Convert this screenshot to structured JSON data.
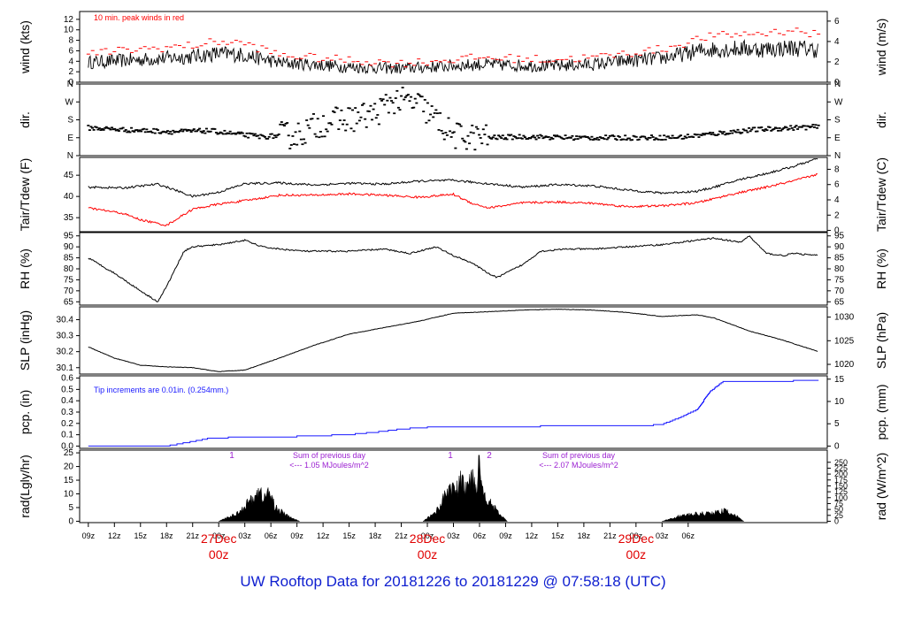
{
  "footer": {
    "prefix": "UW Rooftop Data for",
    "start": "20181226",
    "to": "to",
    "end": "20181229",
    "at": "@",
    "time": "07:58:18",
    "tz": "(UTC)"
  },
  "colors": {
    "data": "#000000",
    "peak": "#ff0000",
    "dewpoint": "#ff0000",
    "precip": "#1a1aff",
    "note": "#9b1fd1",
    "date_label": "#e00000",
    "footer": "#1020d0"
  },
  "chart_data": [
    {
      "id": "wind",
      "type": "line",
      "ylabel": "wind (kts)",
      "ylabel_right": "wind (m/s)",
      "yticks": [
        "0",
        "2",
        "4",
        "6",
        "8",
        "10",
        "12"
      ],
      "yticks_right": [
        "0",
        "2",
        "4",
        "6"
      ],
      "ylim": [
        0,
        13.5
      ],
      "annotation": "10 min. peak winds in red",
      "series": [
        {
          "x": [
            0,
            6,
            12,
            15,
            18,
            22,
            25,
            30,
            36,
            45,
            50,
            53,
            58,
            62,
            66,
            71,
            75,
            78,
            81,
            84
          ],
          "y": [
            3.8,
            4.3,
            4.9,
            5.5,
            5.2,
            3.7,
            3.5,
            2.9,
            2.6,
            3.4,
            3.2,
            3.1,
            3.4,
            4.1,
            4.6,
            6.2,
            6.4,
            6.3,
            6.6,
            6.2
          ]
        },
        {
          "x": [
            0,
            6,
            12,
            15,
            18,
            22,
            25,
            30,
            36,
            45,
            50,
            53,
            58,
            62,
            66,
            71,
            75,
            78,
            81,
            84
          ],
          "y": [
            5.5,
            6.3,
            7.0,
            7.8,
            7.4,
            5.2,
            4.8,
            4.2,
            3.6,
            4.7,
            4.5,
            4.3,
            4.7,
            5.5,
            6.3,
            8.6,
            9.2,
            9.4,
            10.0,
            9.0
          ]
        }
      ]
    },
    {
      "id": "dir",
      "type": "scatter",
      "ylabel": "dir.",
      "ylabel_right": "dir.",
      "yticks": [
        "N",
        "E",
        "S",
        "W",
        "N"
      ],
      "yticks_right": [
        "N",
        "E",
        "S",
        "W",
        "N"
      ],
      "ylim": [
        0,
        360
      ],
      "series": [
        {
          "x": [
            0,
            5,
            10,
            14,
            17,
            20,
            24,
            27,
            30,
            33,
            35,
            38,
            42,
            46,
            50,
            56,
            62,
            68,
            72,
            76,
            80,
            84
          ],
          "y": [
            140,
            128,
            120,
            125,
            108,
            95,
            105,
            165,
            185,
            210,
            280,
            260,
            100,
            90,
            95,
            90,
            90,
            92,
            110,
            128,
            138,
            145
          ]
        }
      ]
    },
    {
      "id": "temp",
      "type": "line",
      "ylabel": "Tair/Tdew (F)",
      "ylabel_right": "Tair/Tdew (C)",
      "yticks": [
        "35",
        "40",
        "45"
      ],
      "yticks_right": [
        "0",
        "2",
        "4",
        "6",
        "8"
      ],
      "ylim": [
        31.7,
        49.2
      ],
      "series": [
        {
          "x": [
            0,
            4,
            8,
            10,
            12,
            15,
            18,
            22,
            26,
            30,
            34,
            38,
            42,
            46,
            50,
            54,
            58,
            62,
            66,
            70,
            72,
            75,
            78,
            81,
            84
          ],
          "y": [
            42.2,
            42.0,
            42.9,
            41.5,
            40.0,
            41.0,
            43.0,
            43.2,
            42.7,
            43.1,
            42.9,
            43.6,
            43.8,
            43.0,
            42.2,
            42.8,
            42.5,
            41.5,
            40.8,
            41.2,
            42.2,
            44.0,
            45.4,
            47.0,
            49.0
          ]
        },
        {
          "x": [
            0,
            4,
            6,
            9,
            12,
            15,
            18,
            22,
            26,
            30,
            34,
            38,
            42,
            44,
            46,
            50,
            54,
            58,
            62,
            66,
            70,
            74,
            78,
            81,
            84
          ],
          "y": [
            37.3,
            36.0,
            34.5,
            33.2,
            37.0,
            38.2,
            39.0,
            40.3,
            40.3,
            40.6,
            40.3,
            39.8,
            40.5,
            38.5,
            37.3,
            38.5,
            38.7,
            38.4,
            37.6,
            37.8,
            38.5,
            40.5,
            42.2,
            43.6,
            45.3
          ]
        }
      ]
    },
    {
      "id": "rh",
      "type": "line",
      "ylabel": "RH (%)",
      "ylabel_right": "RH (%)",
      "yticks": [
        "65",
        "70",
        "75",
        "80",
        "85",
        "90",
        "95"
      ],
      "yticks_right": [
        "65",
        "70",
        "75",
        "80",
        "85",
        "90",
        "95"
      ],
      "ylim": [
        63.5,
        96.5
      ],
      "series": [
        {
          "x": [
            0,
            3,
            6,
            8,
            9,
            11,
            12,
            15,
            18,
            20,
            22,
            25,
            30,
            34,
            37,
            40,
            42,
            44,
            46,
            47,
            50,
            52,
            55,
            58,
            62,
            66,
            70,
            72,
            75,
            76,
            78,
            80,
            81,
            84
          ],
          "y": [
            85,
            78,
            70,
            65,
            72,
            88,
            90,
            91,
            93,
            90,
            89,
            88,
            88,
            89,
            87,
            90,
            86,
            83,
            78,
            76,
            82,
            88,
            89,
            89,
            90,
            91,
            93,
            94,
            92,
            95,
            87,
            86,
            87,
            86
          ]
        }
      ]
    },
    {
      "id": "slp",
      "type": "line",
      "ylabel": "SLP (inHg)",
      "ylabel_right": "SLP (hPa)",
      "yticks": [
        "30.1",
        "30.2",
        "30.3",
        "30.4"
      ],
      "yticks_right": [
        "1020",
        "1025",
        "1030"
      ],
      "ylim": [
        30.06,
        30.48
      ],
      "series": [
        {
          "x": [
            0,
            3,
            6,
            9,
            12,
            15,
            18,
            22,
            26,
            30,
            34,
            38,
            42,
            46,
            50,
            54,
            58,
            62,
            66,
            70,
            72,
            76,
            80,
            84
          ],
          "y": [
            30.23,
            30.16,
            30.115,
            30.105,
            30.1,
            30.075,
            30.085,
            30.16,
            30.24,
            30.31,
            30.35,
            30.39,
            30.44,
            30.45,
            30.46,
            30.465,
            30.46,
            30.445,
            30.42,
            30.43,
            30.41,
            30.33,
            30.27,
            30.2
          ]
        }
      ]
    },
    {
      "id": "pcp",
      "type": "line",
      "ylabel": "pcp. (in)",
      "ylabel_right": "pcp. (mm)",
      "yticks": [
        "0.0",
        "0.1",
        "0.2",
        "0.3",
        "0.4",
        "0.5",
        "0.6"
      ],
      "yticks_right": [
        "0",
        "5",
        "10",
        "15"
      ],
      "ylim": [
        -0.02,
        0.62
      ],
      "annotation": "Tip increments are 0.01in. (0.254mm.)",
      "series": [
        {
          "x": [
            0,
            9,
            12,
            14,
            18,
            22,
            26,
            30,
            34,
            36,
            38,
            40,
            48,
            56,
            64,
            66,
            68,
            70,
            71.5,
            73,
            76,
            80,
            82,
            84
          ],
          "y": [
            0,
            0,
            0.04,
            0.07,
            0.08,
            0.08,
            0.09,
            0.1,
            0.13,
            0.15,
            0.16,
            0.17,
            0.17,
            0.18,
            0.18,
            0.19,
            0.25,
            0.32,
            0.48,
            0.57,
            0.57,
            0.57,
            0.58,
            0.58
          ]
        }
      ]
    },
    {
      "id": "rad",
      "type": "area",
      "ylabel": "rad(Lgly/hr)",
      "ylabel_right": "rad (W/m^2)",
      "yticks": [
        "0",
        "5",
        "10",
        "15",
        "20",
        "25"
      ],
      "yticks_right": [
        "0",
        "25",
        "50",
        "75",
        "100",
        "125",
        "150",
        "175",
        "200",
        "225",
        "250"
      ],
      "ylim": [
        -0.5,
        26
      ],
      "marks": [
        "1",
        "1",
        "2"
      ],
      "notes": [
        {
          "line1": "Sum of previous day",
          "line2": "<--- 1.05 MJoules/m^2"
        },
        {
          "line1": "Sum of previous day",
          "line2": "<--- 2.07 MJoules/m^2"
        }
      ],
      "series": [
        {
          "x": [
            15.0,
            17.0,
            18.5,
            19.5,
            20.3,
            20.8,
            21.5,
            22.2,
            23.0,
            24.3
          ],
          "y": [
            0,
            3,
            8,
            12,
            10,
            12,
            6,
            4,
            2,
            0
          ]
        },
        {
          "x": [
            38.5,
            40.0,
            41.0,
            41.6,
            42.3,
            42.9,
            43.5,
            44.2,
            44.6,
            45.0,
            45.4,
            46.2,
            47.0,
            48.2
          ],
          "y": [
            0,
            4,
            10,
            15,
            12,
            17,
            13,
            20,
            14,
            25,
            12,
            8,
            4,
            0
          ]
        },
        {
          "x": [
            66.0,
            68.0,
            70.0,
            72.0,
            73.2,
            74.2,
            75.4
          ],
          "y": [
            0,
            2.2,
            3.0,
            3.5,
            4.3,
            3.0,
            0
          ]
        }
      ]
    }
  ],
  "x_axis": {
    "xlim": [
      -1.0,
      85.0
    ],
    "ticks": [
      {
        "x": 0,
        "label": "09z"
      },
      {
        "x": 3,
        "label": "12z"
      },
      {
        "x": 6,
        "label": "15z"
      },
      {
        "x": 9,
        "label": "18z"
      },
      {
        "x": 12,
        "label": "21z"
      },
      {
        "x": 15,
        "label": "00z"
      },
      {
        "x": 18,
        "label": "03z"
      },
      {
        "x": 21,
        "label": "06z"
      },
      {
        "x": 24,
        "label": "09z"
      },
      {
        "x": 27,
        "label": "12z"
      },
      {
        "x": 30,
        "label": "15z"
      },
      {
        "x": 33,
        "label": "18z"
      },
      {
        "x": 36,
        "label": "21z"
      },
      {
        "x": 39,
        "label": "00z"
      },
      {
        "x": 42,
        "label": "03z"
      },
      {
        "x": 45,
        "label": "06z"
      },
      {
        "x": 48,
        "label": "09z"
      },
      {
        "x": 51,
        "label": "12z"
      },
      {
        "x": 54,
        "label": "15z"
      },
      {
        "x": 57,
        "label": "18z"
      },
      {
        "x": 60,
        "label": "21z"
      },
      {
        "x": 63,
        "label": "00z"
      },
      {
        "x": 66,
        "label": "03z"
      },
      {
        "x": 69,
        "label": "06z"
      }
    ],
    "date_labels": [
      {
        "x": -22,
        "top": "Dec",
        "bottom": "z"
      },
      {
        "x": 15,
        "top": "27Dec",
        "bottom": "00z"
      },
      {
        "x": 39,
        "top": "28Dec",
        "bottom": "00z"
      },
      {
        "x": 63,
        "top": "29Dec",
        "bottom": "00z"
      }
    ]
  }
}
